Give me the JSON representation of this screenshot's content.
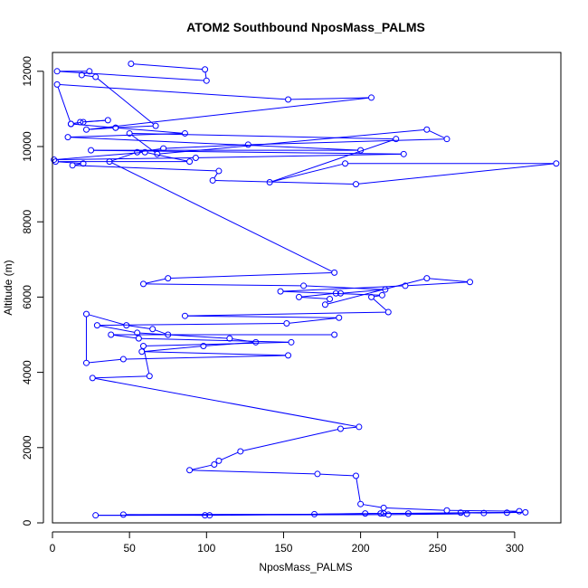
{
  "chart_data": {
    "type": "line",
    "title": "ATOM2 Southbound NposMass_PALMS",
    "xlabel": "NposMass_PALMS",
    "ylabel": "Altitude (m)",
    "xlim": [
      0,
      330
    ],
    "ylim": [
      0,
      12500
    ],
    "x_ticks": [
      0,
      50,
      100,
      150,
      200,
      250,
      300
    ],
    "y_ticks": [
      0,
      2000,
      4000,
      6000,
      8000,
      10000,
      12000
    ],
    "grid": false,
    "legend": "none",
    "color": "#0000ff",
    "x": [
      51,
      99,
      100,
      3,
      24,
      19,
      28,
      67,
      41,
      22,
      207,
      153,
      3,
      12,
      18,
      36,
      20,
      12,
      41,
      86,
      10,
      200,
      25,
      228,
      93,
      1,
      60,
      89,
      2,
      20,
      13,
      108,
      104,
      197,
      327,
      190,
      141,
      223,
      50,
      68,
      243,
      256,
      127,
      72,
      55,
      37,
      183,
      75,
      59,
      163,
      216,
      187,
      184,
      160,
      180,
      177,
      243,
      271,
      229,
      148,
      214,
      207,
      218,
      86,
      186,
      152,
      29,
      55,
      115,
      132,
      98,
      58,
      153,
      46,
      22,
      22,
      48,
      65,
      75,
      183,
      38,
      56,
      155,
      59,
      63,
      26,
      199,
      187,
      122,
      108,
      105,
      89,
      172,
      197,
      200,
      215,
      256,
      303,
      295,
      265,
      280,
      307,
      215,
      102,
      46,
      170,
      203,
      213,
      231,
      269,
      218,
      28,
      99
    ],
    "y": [
      12200,
      12050,
      11750,
      12000,
      12000,
      11900,
      11850,
      10550,
      10500,
      10450,
      11300,
      11250,
      11650,
      10600,
      10650,
      10700,
      10650,
      10600,
      10500,
      10350,
      10250,
      9900,
      9900,
      9800,
      9700,
      9650,
      9850,
      9600,
      9600,
      9550,
      9500,
      9350,
      9100,
      9000,
      9550,
      9550,
      9050,
      10200,
      10350,
      9800,
      10450,
      10200,
      10050,
      9950,
      9850,
      9600,
      6650,
      6500,
      6350,
      6300,
      6200,
      6100,
      6100,
      6000,
      5950,
      5800,
      6500,
      6400,
      6300,
      6150,
      6050,
      6000,
      5600,
      5500,
      5450,
      5300,
      5250,
      5050,
      4900,
      4800,
      4700,
      4550,
      4450,
      4350,
      4250,
      5550,
      5250,
      5150,
      5000,
      5000,
      5000,
      4900,
      4800,
      4700,
      3900,
      3850,
      2550,
      2500,
      1900,
      1650,
      1550,
      1400,
      1300,
      1250,
      500,
      400,
      330,
      310,
      270,
      270,
      260,
      280,
      250,
      200,
      220,
      230,
      250,
      250,
      250,
      240,
      220,
      200,
      200
    ]
  }
}
